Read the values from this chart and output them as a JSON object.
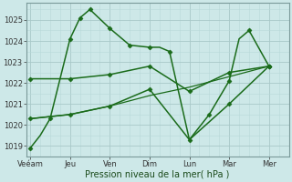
{
  "xlabel": "Pression niveau de la mer( hPa )",
  "ylim": [
    1018.5,
    1025.8
  ],
  "yticks": [
    1019,
    1020,
    1021,
    1022,
    1023,
    1024,
    1025
  ],
  "xtick_labels": [
    "Veéam",
    "Jeu",
    "Ven",
    "Dim",
    "Lun",
    "Mar",
    "Mer"
  ],
  "xtick_positions": [
    0,
    2,
    4,
    6,
    8,
    10,
    12
  ],
  "xlim": [
    -0.2,
    13.0
  ],
  "background_color": "#cde8e8",
  "grid_color_major": "#a8c8c8",
  "grid_color_minor": "#b8d8d8",
  "line_color": "#1a6b1a",
  "series": [
    {
      "name": "line1_high",
      "x": [
        0,
        0.5,
        1,
        2,
        2.5,
        3,
        4,
        5,
        6,
        6.5,
        7,
        8,
        9,
        10,
        10.5,
        11,
        12
      ],
      "y": [
        1018.9,
        1019.5,
        1020.3,
        1024.1,
        1025.1,
        1025.5,
        1024.6,
        1023.8,
        1023.7,
        1023.7,
        1023.5,
        1019.3,
        1020.5,
        1022.1,
        1024.1,
        1024.5,
        1022.8
      ],
      "marker": "D",
      "markersize": 2.5,
      "linewidth": 1.1,
      "markevery": [
        0,
        2,
        3,
        4,
        5,
        6,
        7,
        8,
        10,
        12,
        13,
        15,
        16
      ]
    },
    {
      "name": "line2_flat",
      "x": [
        0,
        2,
        4,
        6,
        8,
        10,
        12
      ],
      "y": [
        1022.2,
        1022.2,
        1022.4,
        1022.8,
        1021.6,
        1022.5,
        1022.8
      ],
      "marker": "D",
      "markersize": 2.5,
      "linewidth": 1.1,
      "markevery": null
    },
    {
      "name": "line3_rising",
      "x": [
        0,
        2,
        4,
        6,
        8,
        10,
        12
      ],
      "y": [
        1020.3,
        1020.5,
        1020.9,
        1021.7,
        1019.3,
        1021.0,
        1022.8
      ],
      "marker": "D",
      "markersize": 2.5,
      "linewidth": 1.1,
      "markevery": null
    },
    {
      "name": "line4_linear",
      "x": [
        0,
        2,
        4,
        6,
        8,
        10,
        12
      ],
      "y": [
        1020.3,
        1020.5,
        1020.9,
        1021.4,
        1021.8,
        1022.3,
        1022.8
      ],
      "marker": null,
      "markersize": 0,
      "linewidth": 0.9,
      "markevery": null
    }
  ]
}
